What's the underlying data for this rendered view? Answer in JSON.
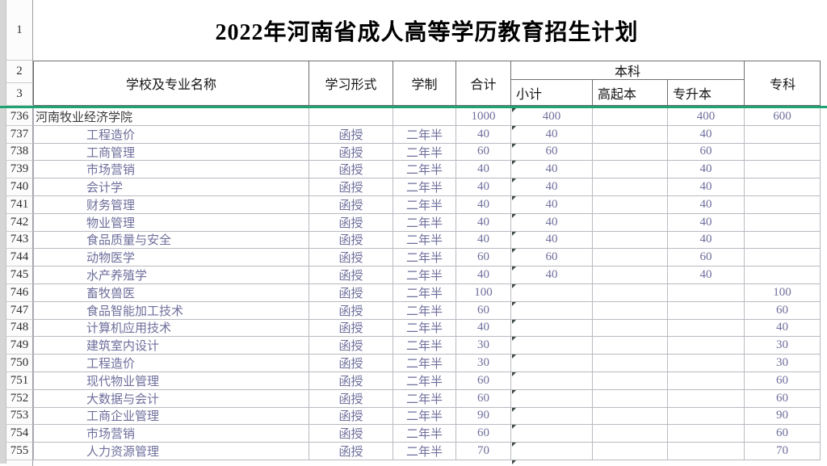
{
  "title": "2022年河南省成人高等学历教育招生计划",
  "gutter": {
    "r1": "1",
    "r2": "2",
    "r3": "3"
  },
  "header": {
    "col_school": "学校及专业名称",
    "col_form": "学习形式",
    "col_duration": "学制",
    "col_total": "合计",
    "col_undergrad": "本科",
    "col_subtotal": "小计",
    "col_gaoqiben": "高起本",
    "col_zhuanshengben": "专升本",
    "col_zhuanke": "专科"
  },
  "colors": {
    "freeze_line": "#1ea472",
    "value_text": "#6e6e9c",
    "school_text": "#3a3a3a",
    "grid_border": "#b9b9c2",
    "header_border": "#6f6f6f",
    "flag_triangle": "#3d483e"
  },
  "table": {
    "rows": [
      {
        "num": "736",
        "name": "河南牧业经济学院",
        "is_school": true,
        "form": "",
        "duration": "",
        "total": "1000",
        "subtotal": "400",
        "gqb": "",
        "zsb": "400",
        "zk": "600"
      },
      {
        "num": "737",
        "name": "工程造价",
        "is_school": false,
        "form": "函授",
        "duration": "二年半",
        "total": "40",
        "subtotal": "40",
        "gqb": "",
        "zsb": "40",
        "zk": ""
      },
      {
        "num": "738",
        "name": "工商管理",
        "is_school": false,
        "form": "函授",
        "duration": "二年半",
        "total": "60",
        "subtotal": "60",
        "gqb": "",
        "zsb": "60",
        "zk": ""
      },
      {
        "num": "739",
        "name": "市场营销",
        "is_school": false,
        "form": "函授",
        "duration": "二年半",
        "total": "40",
        "subtotal": "40",
        "gqb": "",
        "zsb": "40",
        "zk": ""
      },
      {
        "num": "740",
        "name": "会计学",
        "is_school": false,
        "form": "函授",
        "duration": "二年半",
        "total": "40",
        "subtotal": "40",
        "gqb": "",
        "zsb": "40",
        "zk": ""
      },
      {
        "num": "741",
        "name": "财务管理",
        "is_school": false,
        "form": "函授",
        "duration": "二年半",
        "total": "40",
        "subtotal": "40",
        "gqb": "",
        "zsb": "40",
        "zk": ""
      },
      {
        "num": "742",
        "name": "物业管理",
        "is_school": false,
        "form": "函授",
        "duration": "二年半",
        "total": "40",
        "subtotal": "40",
        "gqb": "",
        "zsb": "40",
        "zk": ""
      },
      {
        "num": "743",
        "name": "食品质量与安全",
        "is_school": false,
        "form": "函授",
        "duration": "二年半",
        "total": "40",
        "subtotal": "40",
        "gqb": "",
        "zsb": "40",
        "zk": ""
      },
      {
        "num": "744",
        "name": "动物医学",
        "is_school": false,
        "form": "函授",
        "duration": "二年半",
        "total": "60",
        "subtotal": "60",
        "gqb": "",
        "zsb": "60",
        "zk": ""
      },
      {
        "num": "745",
        "name": "水产养殖学",
        "is_school": false,
        "form": "函授",
        "duration": "二年半",
        "total": "40",
        "subtotal": "40",
        "gqb": "",
        "zsb": "40",
        "zk": ""
      },
      {
        "num": "746",
        "name": "畜牧兽医",
        "is_school": false,
        "form": "函授",
        "duration": "二年半",
        "total": "100",
        "subtotal": "",
        "gqb": "",
        "zsb": "",
        "zk": "100"
      },
      {
        "num": "747",
        "name": "食品智能加工技术",
        "is_school": false,
        "form": "函授",
        "duration": "二年半",
        "total": "60",
        "subtotal": "",
        "gqb": "",
        "zsb": "",
        "zk": "60"
      },
      {
        "num": "748",
        "name": "计算机应用技术",
        "is_school": false,
        "form": "函授",
        "duration": "二年半",
        "total": "40",
        "subtotal": "",
        "gqb": "",
        "zsb": "",
        "zk": "40"
      },
      {
        "num": "749",
        "name": "建筑室内设计",
        "is_school": false,
        "form": "函授",
        "duration": "二年半",
        "total": "30",
        "subtotal": "",
        "gqb": "",
        "zsb": "",
        "zk": "30"
      },
      {
        "num": "750",
        "name": "工程造价",
        "is_school": false,
        "form": "函授",
        "duration": "二年半",
        "total": "30",
        "subtotal": "",
        "gqb": "",
        "zsb": "",
        "zk": "30"
      },
      {
        "num": "751",
        "name": "现代物业管理",
        "is_school": false,
        "form": "函授",
        "duration": "二年半",
        "total": "60",
        "subtotal": "",
        "gqb": "",
        "zsb": "",
        "zk": "60"
      },
      {
        "num": "752",
        "name": "大数据与会计",
        "is_school": false,
        "form": "函授",
        "duration": "二年半",
        "total": "60",
        "subtotal": "",
        "gqb": "",
        "zsb": "",
        "zk": "60"
      },
      {
        "num": "753",
        "name": "工商企业管理",
        "is_school": false,
        "form": "函授",
        "duration": "二年半",
        "total": "90",
        "subtotal": "",
        "gqb": "",
        "zsb": "",
        "zk": "90"
      },
      {
        "num": "754",
        "name": "市场营销",
        "is_school": false,
        "form": "函授",
        "duration": "二年半",
        "total": "60",
        "subtotal": "",
        "gqb": "",
        "zsb": "",
        "zk": "60"
      },
      {
        "num": "755",
        "name": "人力资源管理",
        "is_school": false,
        "form": "函授",
        "duration": "二年半",
        "total": "70",
        "subtotal": "",
        "gqb": "",
        "zsb": "",
        "zk": "70"
      }
    ]
  }
}
